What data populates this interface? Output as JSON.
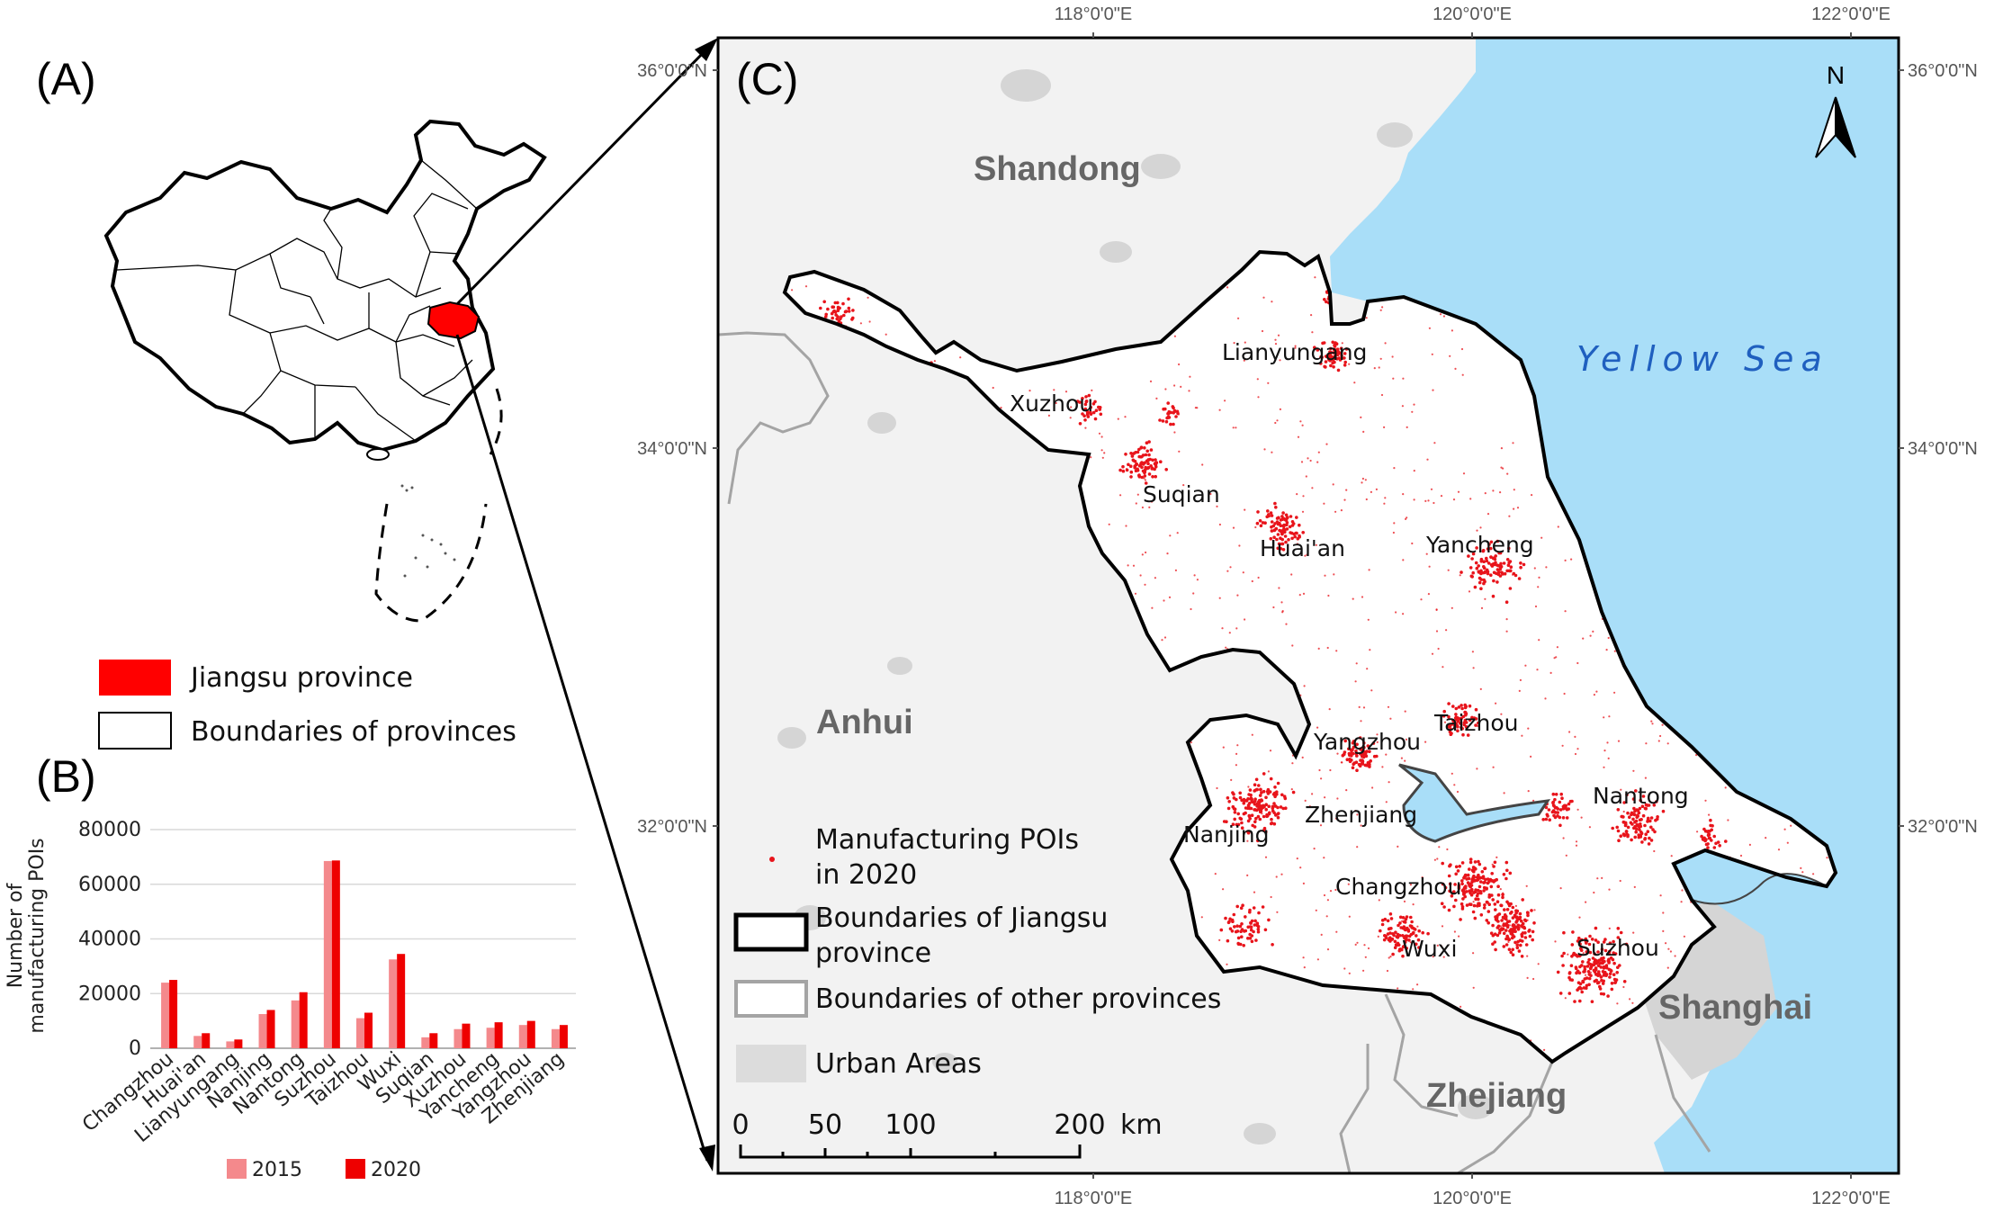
{
  "panels": {
    "a_label": "(A)",
    "b_label": "(B)",
    "c_label": "(C)"
  },
  "legend_a": {
    "jiangsu": "Jiangsu province",
    "boundaries": "Boundaries of provinces"
  },
  "map_c": {
    "top_longitudes": [
      "118°0'0\"E",
      "120°0'0\"E",
      "122°0'0\"E"
    ],
    "bottom_longitudes": [
      "118°0'0\"E",
      "120°0'0\"E",
      "122°0'0\"E"
    ],
    "left_latitudes": [
      "36°0'0\"N",
      "34°0'0\"N",
      "32°0'0\"N"
    ],
    "right_latitudes": [
      "36°0'0\"N",
      "34°0'0\"N",
      "32°0'0\"N"
    ],
    "north_arrow": "N",
    "provinces": [
      "Shandong",
      "Anhui",
      "Zhejiang",
      "Shanghai"
    ],
    "sea": "Yellow Sea",
    "cities": [
      "Lianyungang",
      "Xuzhou",
      "Suqian",
      "Huai'an",
      "Yancheng",
      "Yangzhou",
      "Taizhou",
      "Zhenjiang",
      "Nanjing",
      "Nantong",
      "Changzhou",
      "Wuxi",
      "Suzhou"
    ],
    "legend": {
      "pois_line1": "Manufacturing POIs",
      "pois_line2": "in 2020",
      "jiangsu_line1": "Boundaries of Jiangsu",
      "jiangsu_line2": "province",
      "other": "Boundaries of other provinces",
      "urban": "Urban Areas"
    },
    "scale": {
      "ticks": [
        "0",
        "50",
        "100",
        "200"
      ],
      "unit": "km"
    }
  },
  "colors": {
    "jiangsu_fill": "#ff0000",
    "poi": "#e8141b",
    "sea": "#a9def8",
    "urban": "#dcdcdc",
    "series_2015": "#f4898c",
    "series_2020": "#ee0000"
  },
  "chart_data": {
    "type": "bar",
    "ylabel": "Number of manufacturing POIs",
    "ylim": [
      0,
      80000
    ],
    "yticks": [
      "0",
      "20000",
      "40000",
      "60000",
      "80000"
    ],
    "categories": [
      "Changzhou",
      "Huai'an",
      "Lianyungang",
      "Nanjing",
      "Nantong",
      "Suzhou",
      "Taizhou",
      "Wuxi",
      "Suqian",
      "Xuzhou",
      "Yancheng",
      "Yangzhou",
      "Zhenjiang"
    ],
    "series": [
      {
        "name": "2015",
        "values": [
          24000,
          4500,
          2500,
          12500,
          17500,
          68500,
          11000,
          32500,
          4000,
          7000,
          7500,
          8500,
          7000
        ]
      },
      {
        "name": "2020",
        "values": [
          25000,
          5500,
          3200,
          14000,
          20500,
          68700,
          13000,
          34500,
          5500,
          9000,
          9500,
          10000,
          8500
        ]
      }
    ],
    "grid": true,
    "legend": "bottom"
  }
}
